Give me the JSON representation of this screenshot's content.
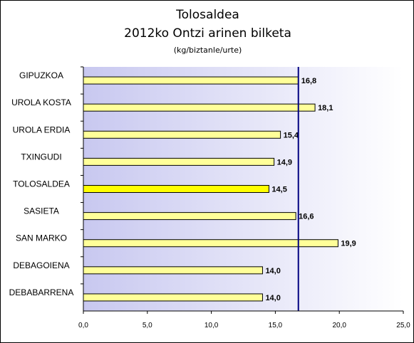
{
  "chart_data": {
    "type": "bar",
    "orientation": "horizontal",
    "title": "Tolosaldea",
    "subtitle": "2012ko Ontzi arinen bilketa",
    "unit_label": "(kg/biztanle/urte)",
    "categories": [
      "GIPUZKOA",
      "UROLA KOSTA",
      "UROLA ERDIA",
      "TXINGUDI",
      "TOLOSALDEA",
      "SASIETA",
      "SAN MARKO",
      "DEBAGOIENA",
      "DEBABARRENA"
    ],
    "values": [
      16.8,
      18.1,
      15.4,
      14.9,
      14.5,
      16.6,
      19.9,
      14.0,
      14.0
    ],
    "value_labels": [
      "16,8",
      "18,1",
      "15,4",
      "14,9",
      "14,5",
      "16,6",
      "19,9",
      "14,0",
      "14,0"
    ],
    "highlight_category": "TOLOSALDEA",
    "reference_line": 16.8,
    "xlim": [
      0,
      25
    ],
    "x_ticks": [
      0,
      5,
      10,
      15,
      20,
      25
    ],
    "x_tick_labels": [
      "0,0",
      "5,0",
      "10,0",
      "15,0",
      "20,0",
      "25,0"
    ],
    "grid": false,
    "legend": "none",
    "colors": {
      "bar": "#ffff99",
      "bar_highlight": "#ffff00",
      "bar_stroke": "#000000",
      "reference_line": "#000080",
      "plot_gradient_start": "#c8c8f0",
      "plot_gradient_end": "#ffffff"
    }
  }
}
